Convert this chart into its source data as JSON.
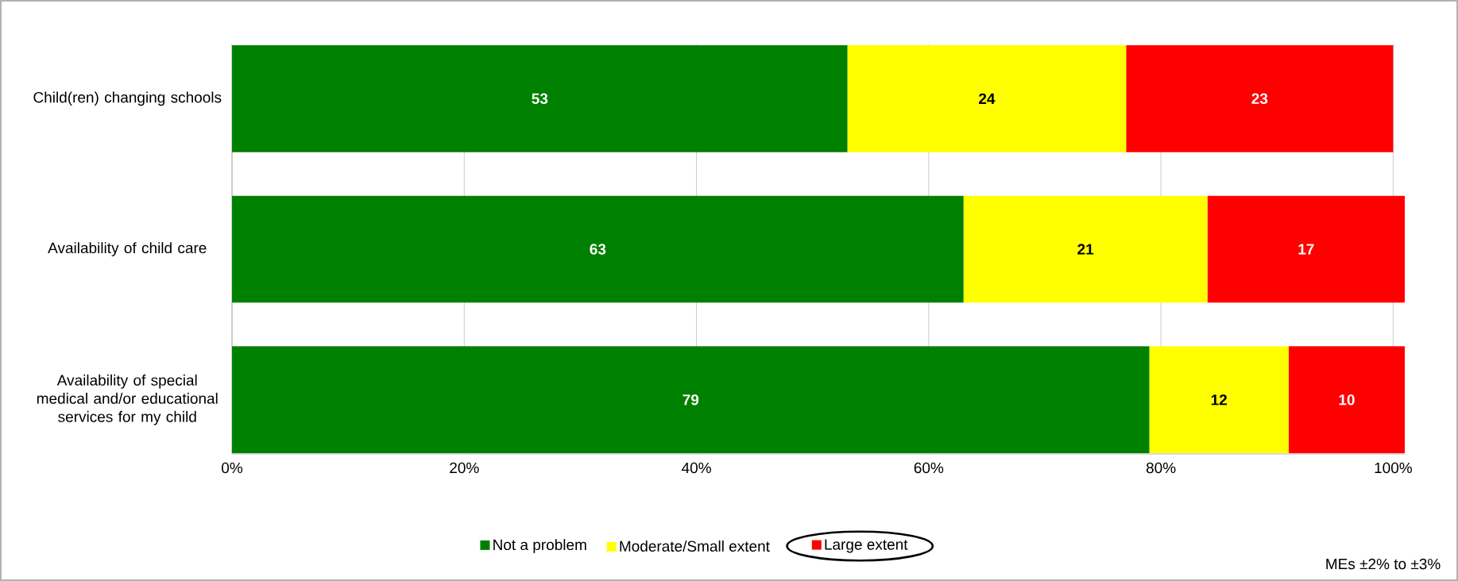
{
  "chart_data": {
    "type": "bar",
    "orientation": "horizontal",
    "stacked": true,
    "categories": [
      "Child(ren) changing schools",
      "Availability of child care",
      "Availability of special medical and/or educational services for my child"
    ],
    "series": [
      {
        "name": "Not a problem",
        "color": "#008000",
        "values": [
          53,
          63,
          79
        ]
      },
      {
        "name": "Moderate/Small extent",
        "color": "#ffff00",
        "values": [
          24,
          21,
          12
        ]
      },
      {
        "name": "Large extent",
        "color": "#ff0000",
        "values": [
          23,
          17,
          10
        ]
      }
    ],
    "data_labels": true,
    "xlim": [
      0,
      101
    ],
    "xticks": [
      {
        "value": 0,
        "label": "0%"
      },
      {
        "value": 20,
        "label": "20%"
      },
      {
        "value": 40,
        "label": "40%"
      },
      {
        "value": 60,
        "label": "60%"
      },
      {
        "value": 80,
        "label": "80%"
      },
      {
        "value": 100,
        "label": "100%"
      }
    ],
    "grid": "x",
    "legend": "bottom",
    "annotations": [
      "MEs ±2% to ±3%"
    ]
  }
}
